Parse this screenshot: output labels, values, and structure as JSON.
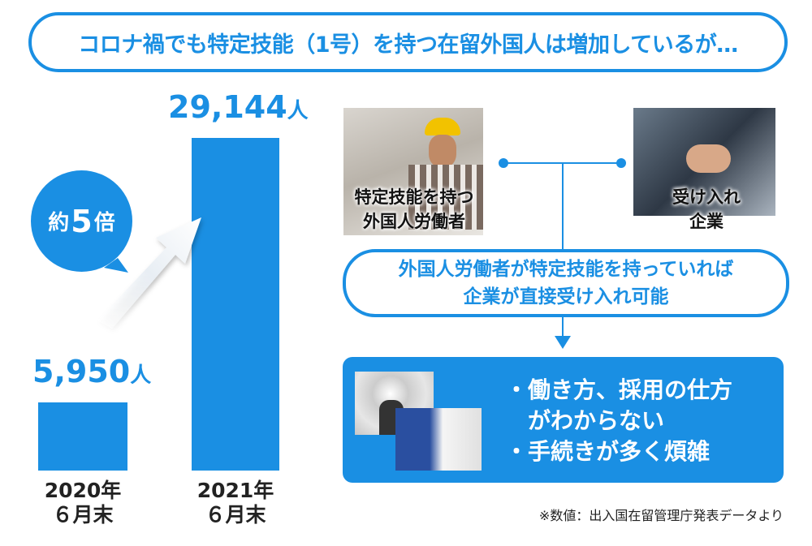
{
  "headline": "コロナ禍でも特定技能（1号）を持つ在留外国人は増加しているが…",
  "chart_data": {
    "type": "bar",
    "categories": [
      "2020年\n６月末",
      "2021年\n６月末"
    ],
    "category_lines": [
      [
        "2020年",
        "６月末"
      ],
      [
        "2021年",
        "６月末"
      ]
    ],
    "values": [
      5950,
      29144
    ],
    "value_labels": [
      "5,950",
      "29,144"
    ],
    "unit": "人",
    "color": "#1a8fe3",
    "annotation": {
      "prefix": "約",
      "number": "5",
      "suffix": "倍"
    }
  },
  "diagram": {
    "worker_label": [
      "特定技能を持つ",
      "外国人労働者"
    ],
    "company_label": [
      "受け入れ",
      "企業"
    ],
    "result": [
      "外国人労働者が特定技能を持っていれば",
      "企業が直接受け入れ可能"
    ],
    "issues": [
      "・働き方、採用の仕方",
      "　がわからない",
      "・手続きが多く煩雑"
    ]
  },
  "footnote": "※数値：出入国在留管理庁発表データより",
  "colors": {
    "accent": "#1a8fe3",
    "text": "#222222",
    "background": "#ffffff"
  }
}
